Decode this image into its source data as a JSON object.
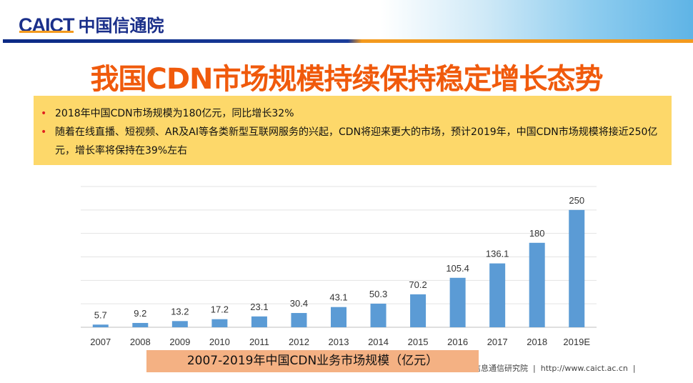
{
  "header": {
    "logo_en": "CAICT",
    "logo_cn": "中国信通院"
  },
  "title": "我国CDN市场规模持续保持稳定增长态势",
  "bullets": [
    "2018年中国CDN市场规模为180亿元，同比增长32%",
    "随着在线直播、短视频、AR及AI等各类新型互联网服务的兴起，CDN将迎来更大的市场，预计2019年，中国CDN市场规模将接近250亿元，增长率将保持在39%左右"
  ],
  "chart_data": {
    "type": "bar",
    "title": "2007-2019年中国CDN业务市场规模（亿元）",
    "categories": [
      "2007",
      "2008",
      "2009",
      "2010",
      "2011",
      "2012",
      "2013",
      "2014",
      "2015",
      "2016",
      "2017",
      "2018",
      "2019E"
    ],
    "values": [
      5.7,
      9.2,
      13.2,
      17.2,
      23.1,
      30.4,
      43.1,
      50.3,
      70.2,
      105.4,
      136.1,
      180,
      250
    ],
    "labels": [
      "5.7",
      "9.2",
      "13.2",
      "17.2",
      "23.1",
      "30.4",
      "43.1",
      "50.3",
      "70.2",
      "105.4",
      "136.1",
      "180",
      "250"
    ],
    "ylim": [
      0,
      300
    ],
    "grid": true,
    "bar_color": "#5b9bd5"
  },
  "footer": {
    "org": "中国信息通信研究院",
    "sep": "|",
    "url": "http://www.caict.ac.cn"
  }
}
